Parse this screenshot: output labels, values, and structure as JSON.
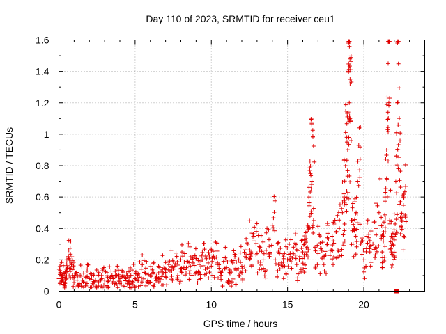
{
  "chart_data": {
    "type": "scatter",
    "title": "Day 110 of 2023, SRMTID for receiver ceu1",
    "xlabel": "GPS time / hours",
    "ylabel": "SRMTID / TECUs",
    "xlim": [
      0,
      24
    ],
    "ylim": [
      0,
      1.6
    ],
    "xticks": [
      0,
      5,
      10,
      15,
      20
    ],
    "xtick_labels": [
      "0",
      "5",
      "10",
      "15",
      "20"
    ],
    "yticks": [
      0,
      0.2,
      0.4,
      0.6,
      0.8,
      1.0,
      1.2,
      1.4,
      1.6
    ],
    "ytick_labels": [
      "0",
      "0.2",
      "0.4",
      "0.6",
      "0.8",
      "1",
      "1.2",
      "1.4",
      "1.6"
    ],
    "grid": true,
    "marker": "plus",
    "color": "#e00000",
    "series": [
      {
        "name": "SRMTID",
        "x": [
          0.0,
          0.1,
          0.2,
          0.3,
          0.4,
          0.5,
          0.6,
          0.7,
          0.8,
          0.9,
          1.0,
          1.2,
          1.4,
          1.6,
          1.8,
          2.0,
          2.2,
          2.4,
          2.6,
          2.8,
          3.0,
          3.2,
          3.4,
          3.6,
          3.8,
          4.0,
          4.2,
          4.4,
          4.6,
          4.8,
          5.0,
          5.2,
          5.4,
          5.6,
          5.8,
          6.0,
          6.2,
          6.4,
          6.6,
          6.8,
          7.0,
          7.2,
          7.4,
          7.6,
          7.8,
          8.0,
          8.2,
          8.4,
          8.6,
          8.8,
          9.0,
          9.2,
          9.4,
          9.6,
          9.8,
          10.0,
          10.2,
          10.4,
          10.6,
          10.8,
          11.0,
          11.2,
          11.4,
          11.6,
          11.8,
          12.0,
          12.2,
          12.4,
          12.6,
          12.8,
          13.0,
          13.2,
          13.4,
          13.6,
          13.8,
          14.0,
          14.2,
          14.4,
          14.6,
          14.8,
          15.0,
          15.2,
          15.4,
          15.6,
          15.8,
          16.0,
          16.1,
          16.2,
          16.3,
          16.4,
          16.5,
          16.6,
          16.8,
          17.0,
          17.2,
          17.4,
          17.6,
          17.8,
          18.0,
          18.2,
          18.4,
          18.6,
          18.7,
          18.8,
          18.9,
          19.0,
          19.05,
          19.1,
          19.2,
          19.3,
          19.4,
          19.5,
          19.6,
          19.8,
          20.0,
          20.2,
          20.4,
          20.6,
          20.8,
          21.0,
          21.2,
          21.3,
          21.4,
          21.5,
          21.6,
          21.7,
          21.8,
          21.9,
          22.0,
          22.1,
          22.2,
          22.3,
          22.4,
          22.5,
          22.6
        ],
        "y": [
          0.08,
          0.12,
          0.1,
          0.06,
          0.09,
          0.14,
          0.22,
          0.2,
          0.18,
          0.1,
          0.09,
          0.07,
          0.1,
          0.06,
          0.09,
          0.08,
          0.05,
          0.07,
          0.06,
          0.08,
          0.07,
          0.09,
          0.08,
          0.06,
          0.1,
          0.08,
          0.09,
          0.08,
          0.09,
          0.1,
          0.08,
          0.11,
          0.14,
          0.12,
          0.06,
          0.1,
          0.12,
          0.09,
          0.08,
          0.14,
          0.12,
          0.17,
          0.13,
          0.16,
          0.1,
          0.2,
          0.15,
          0.19,
          0.13,
          0.18,
          0.12,
          0.17,
          0.2,
          0.14,
          0.18,
          0.16,
          0.21,
          0.17,
          0.12,
          0.19,
          0.15,
          0.12,
          0.18,
          0.14,
          0.2,
          0.16,
          0.22,
          0.3,
          0.25,
          0.32,
          0.24,
          0.28,
          0.2,
          0.26,
          0.22,
          0.42,
          0.2,
          0.25,
          0.18,
          0.24,
          0.2,
          0.22,
          0.28,
          0.17,
          0.22,
          0.25,
          0.3,
          0.32,
          0.28,
          0.6,
          0.75,
          0.7,
          0.28,
          0.24,
          0.26,
          0.22,
          0.3,
          0.26,
          0.32,
          0.38,
          0.4,
          0.5,
          0.62,
          0.8,
          0.95,
          1.58,
          1.2,
          1.1,
          0.45,
          0.3,
          0.4,
          0.5,
          0.7,
          0.3,
          0.2,
          0.35,
          0.25,
          0.3,
          0.4,
          0.5,
          0.25,
          0.35,
          0.6,
          0.9,
          1.45,
          0.45,
          0.25,
          0.3,
          0.35,
          0.7,
          1.2,
          0.9,
          0.47,
          0.45,
          0.6
        ],
        "extra_points_note": ""
      }
    ],
    "highlight_points": [
      {
        "x": 22.15,
        "y": 0.0
      }
    ]
  }
}
